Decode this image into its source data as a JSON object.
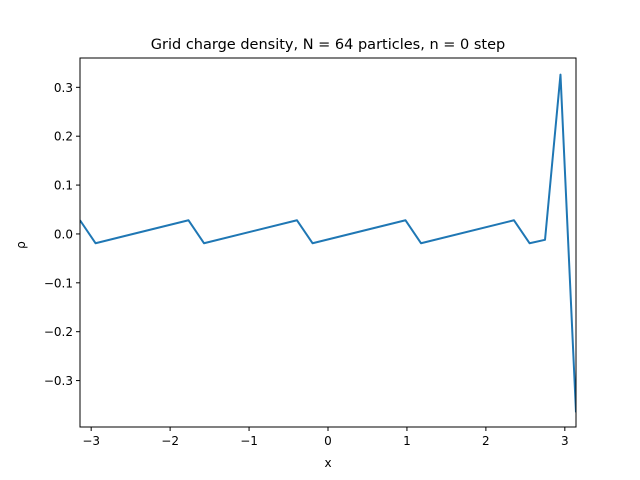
{
  "chart_data": {
    "type": "line",
    "title": "Grid charge density, N = 64 particles, n = 0 step",
    "xlabel": "x",
    "ylabel": "ρ",
    "xlim": [
      -3.1416,
      3.1416
    ],
    "ylim": [
      -0.395,
      0.36
    ],
    "grid": false,
    "legend": "none",
    "x_ticks": [
      {
        "value": -3,
        "label": "−3"
      },
      {
        "value": -2,
        "label": "−2"
      },
      {
        "value": -1,
        "label": "−1"
      },
      {
        "value": 0,
        "label": "0"
      },
      {
        "value": 1,
        "label": "1"
      },
      {
        "value": 2,
        "label": "2"
      },
      {
        "value": 3,
        "label": "3"
      }
    ],
    "y_ticks": [
      {
        "value": 0.3,
        "label": "0.3"
      },
      {
        "value": 0.2,
        "label": "0.2"
      },
      {
        "value": 0.1,
        "label": "0.1"
      },
      {
        "value": 0.0,
        "label": "0.0"
      },
      {
        "value": -0.1,
        "label": "−0.1"
      },
      {
        "value": -0.2,
        "label": "−0.2"
      },
      {
        "value": -0.3,
        "label": "−0.3"
      }
    ],
    "series": [
      {
        "color": "#1f77b4",
        "x": [
          -3.1416,
          -2.945,
          -1.767,
          -1.571,
          -0.393,
          -0.196,
          0.982,
          1.178,
          2.356,
          2.553,
          2.749,
          2.945,
          3.1416
        ],
        "y": [
          0.028,
          -0.019,
          0.028,
          -0.019,
          0.028,
          -0.019,
          0.028,
          -0.019,
          0.028,
          -0.019,
          -0.012,
          0.326,
          -0.365
        ]
      }
    ]
  }
}
